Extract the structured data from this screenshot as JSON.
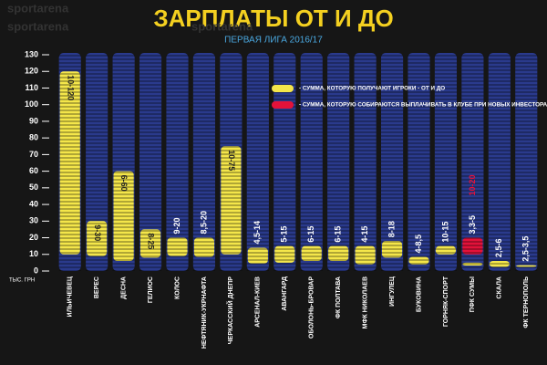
{
  "chart_data": {
    "type": "range-bar",
    "title": "ЗАРПЛАТЫ ОТ И ДО",
    "subtitle": "ПЕРВАЯ ЛИГА 2016/17",
    "watermark": "sportarena",
    "y_unit": "ТЫС. ГРН",
    "categories": [
      "ИЛЬИЧЕВЕЦ",
      "ВЕРЕС",
      "ДЕСНА",
      "ГЕЛИОС",
      "КОЛОС",
      "НЕФТЯНИК-УКРНАФТА",
      "ЧЕРКАССКИЙ ДНЕПР",
      "АРСЕНАЛ-КИЕВ",
      "АВАНГАРД",
      "ОБОЛОНЬ-БРОВАР",
      "ФК ПОЛТАВА",
      "МФК НИКОЛАЕВ",
      "ИНГУЛЕЦ",
      "БУКОВИНА",
      "ГОРНЯК-СПОРТ",
      "ПФК СУМЫ",
      "СКАЛА",
      "ФК ТЕРНОПОЛЬ"
    ],
    "series": [
      {
        "name": "- СУММА, КОТОРУЮ ПОЛУЧАЮТ ИГРОКИ - ОТ И ДО",
        "color": "#f4e64a",
        "low": [
          10,
          9,
          6,
          8,
          9,
          8.5,
          10,
          4.5,
          5,
          6,
          6,
          4,
          8,
          4,
          10,
          3.3,
          2.5,
          2.5
        ],
        "high": [
          120,
          30,
          60,
          25,
          20,
          20,
          75,
          14,
          15,
          15,
          15,
          15,
          18,
          8.5,
          15,
          5,
          6,
          3.5
        ],
        "value_labels": [
          "10-120",
          "9-30",
          "6-60",
          "8-25",
          "9-20",
          "8,5-20",
          "10-75",
          "4,5-14",
          "5-15",
          "6-15",
          "6-15",
          "4-15",
          "8-18",
          "4-8,5",
          "10-15",
          "3,3-5",
          "2,5-6",
          "2,5-3,5"
        ]
      },
      {
        "name": "- СУММА, КОТОРУЮ СОБИРАЮТСЯ ВЫПЛАЧИВАТЬ В КЛУБЕ ПРИ НОВЫХ ИНВЕСТОРАХ",
        "color": "#e3123a",
        "low": [
          null,
          null,
          null,
          null,
          null,
          null,
          null,
          null,
          null,
          null,
          null,
          null,
          null,
          null,
          null,
          10,
          null,
          null
        ],
        "high": [
          null,
          null,
          null,
          null,
          null,
          null,
          null,
          null,
          null,
          null,
          null,
          null,
          null,
          null,
          null,
          20,
          null,
          null
        ],
        "value_labels": [
          null,
          null,
          null,
          null,
          null,
          null,
          null,
          null,
          null,
          null,
          null,
          null,
          null,
          null,
          null,
          "10-20",
          null,
          null
        ]
      }
    ],
    "column_color": "#2a3a8c",
    "ylim": [
      0,
      130
    ],
    "yticks": [
      0,
      10,
      20,
      30,
      40,
      50,
      60,
      70,
      80,
      90,
      100,
      110,
      120,
      130
    ]
  }
}
